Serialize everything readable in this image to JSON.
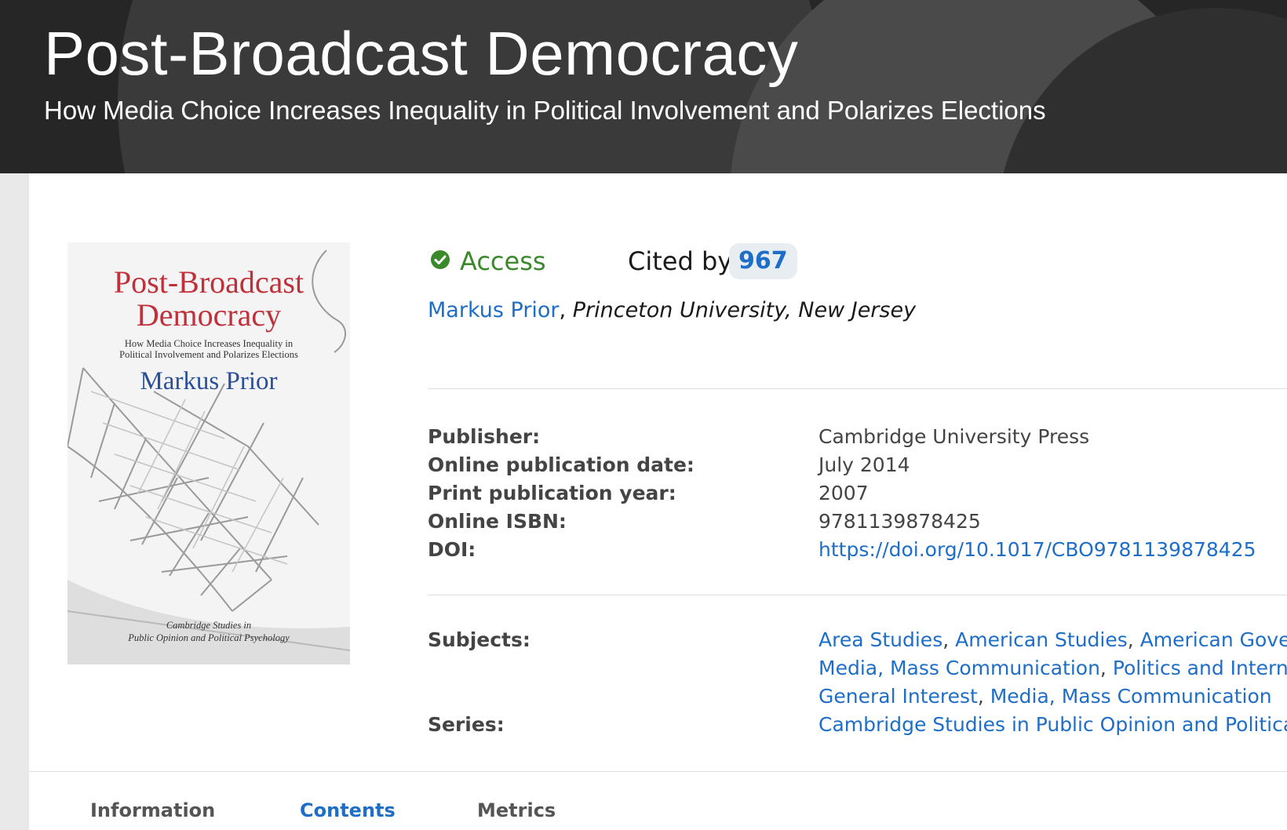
{
  "header": {
    "title": "Post-Broadcast Democracy",
    "subtitle": "How Media Choice Increases Inequality in Political Involvement and Polarizes Elections"
  },
  "cover": {
    "title_line1": "Post-Broadcast",
    "title_line2": "Democracy",
    "subtitle_line1": "How Media Choice Increases Inequality in",
    "subtitle_line2": "Political Involvement and Polarizes Elections",
    "author": "Markus Prior",
    "series_line1": "Cambridge Studies in",
    "series_line2": "Public Opinion and Political Psychology"
  },
  "access": {
    "label": "Access",
    "icon": "check-circle-icon",
    "color": "#3a8a2b"
  },
  "cited_by": {
    "label": "Cited by",
    "count": "967"
  },
  "author": {
    "name": "Markus Prior",
    "separator": ",",
    "affiliation": "Princeton University, New Jersey"
  },
  "metadata": {
    "publisher_label": "Publisher:",
    "publisher": "Cambridge University Press",
    "online_date_label": "Online publication date:",
    "online_date": "July 2014",
    "print_year_label": "Print publication year:",
    "print_year": "2007",
    "isbn_label": "Online ISBN:",
    "isbn": "9781139878425",
    "doi_label": "DOI:",
    "doi": "https://doi.org/10.1017/CBO9781139878425"
  },
  "subjects": {
    "label": "Subjects:",
    "row1": [
      "Area Studies",
      "American Studies",
      "American Government"
    ],
    "row2": [
      "Media, Mass Communication",
      "Politics and International Relations"
    ],
    "row3": [
      "General Interest",
      "Media, Mass Communication"
    ]
  },
  "series": {
    "label": "Series:",
    "value": "Cambridge Studies in Public Opinion and Political Psychology"
  },
  "tabs": [
    {
      "label": "Information",
      "active": false
    },
    {
      "label": "Contents",
      "active": true
    },
    {
      "label": "Metrics",
      "active": false
    }
  ],
  "colors": {
    "link": "#1e6ec8",
    "header_bg": "#262626",
    "cover_title": "#c0303a",
    "cover_author": "#2a4f9a"
  }
}
